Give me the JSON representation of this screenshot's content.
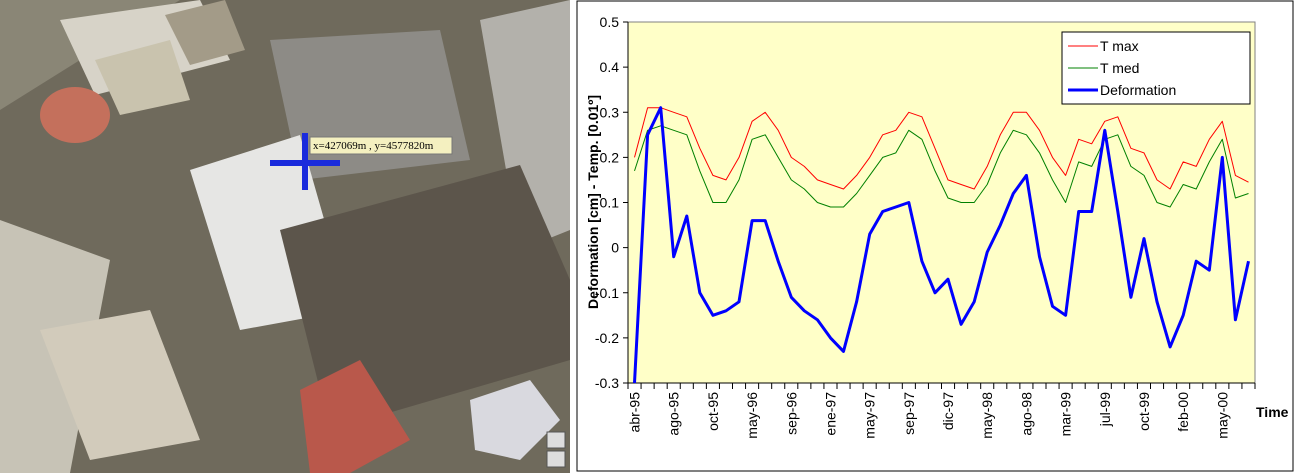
{
  "map": {
    "coordinate_label": "x=427069m , y=4577820m"
  },
  "chart_data": {
    "type": "line",
    "y_label": "Deformation [cm] - Temp. [0.01º]",
    "x_label": "Time",
    "categories": [
      "abr-95",
      null,
      null,
      "ago-95",
      null,
      null,
      "oct-95",
      null,
      null,
      "may-96",
      null,
      null,
      "sep-96",
      null,
      null,
      "ene-97",
      null,
      null,
      "may-97",
      null,
      null,
      "sep-97",
      null,
      null,
      "dic-97",
      null,
      null,
      "may-98",
      null,
      null,
      "ago-98",
      null,
      null,
      "mar-99",
      null,
      null,
      "jul-99",
      null,
      null,
      "oct-99",
      null,
      null,
      "feb-00",
      null,
      null,
      "may-00",
      null,
      null
    ],
    "series": [
      {
        "name": "T max",
        "color": "#ff0000",
        "width": 1,
        "values": [
          0.2,
          0.31,
          0.31,
          0.3,
          0.29,
          0.22,
          0.16,
          0.15,
          0.2,
          0.28,
          0.3,
          0.26,
          0.2,
          0.18,
          0.15,
          0.14,
          0.13,
          0.16,
          0.2,
          0.25,
          0.26,
          0.3,
          0.29,
          0.22,
          0.15,
          0.14,
          0.13,
          0.18,
          0.25,
          0.3,
          0.3,
          0.26,
          0.2,
          0.16,
          0.24,
          0.23,
          0.28,
          0.29,
          0.22,
          0.21,
          0.15,
          0.13,
          0.19,
          0.18,
          0.24,
          0.28,
          0.16,
          0.145
        ]
      },
      {
        "name": "T med",
        "color": "#008000",
        "width": 1,
        "values": [
          0.17,
          0.26,
          0.27,
          0.26,
          0.25,
          0.17,
          0.1,
          0.1,
          0.15,
          0.24,
          0.25,
          0.2,
          0.15,
          0.13,
          0.1,
          0.09,
          0.09,
          0.12,
          0.16,
          0.2,
          0.21,
          0.26,
          0.24,
          0.17,
          0.11,
          0.1,
          0.1,
          0.14,
          0.21,
          0.26,
          0.25,
          0.21,
          0.15,
          0.1,
          0.19,
          0.18,
          0.24,
          0.25,
          0.18,
          0.16,
          0.1,
          0.09,
          0.14,
          0.13,
          0.19,
          0.24,
          0.11,
          0.12
        ]
      },
      {
        "name": "Deformation",
        "color": "#0000ff",
        "width": 3,
        "values": [
          -0.3,
          0.25,
          0.31,
          -0.02,
          0.07,
          -0.1,
          -0.15,
          -0.14,
          -0.12,
          0.06,
          0.06,
          -0.03,
          -0.11,
          -0.14,
          -0.16,
          -0.2,
          -0.23,
          -0.12,
          0.03,
          0.08,
          0.09,
          0.1,
          -0.03,
          -0.1,
          -0.07,
          -0.17,
          -0.12,
          -0.01,
          0.05,
          0.12,
          0.16,
          -0.02,
          -0.13,
          -0.15,
          0.08,
          0.08,
          0.26,
          0.08,
          -0.11,
          0.02,
          -0.12,
          -0.22,
          -0.15,
          -0.03,
          -0.05,
          0.2,
          -0.16,
          -0.03
        ]
      }
    ],
    "ylim": [
      -0.3,
      0.5
    ],
    "yticks": [
      -0.3,
      -0.2,
      -0.1,
      0,
      0.1,
      0.2,
      0.3,
      0.4,
      0.5
    ],
    "background": "#ffffc8",
    "legend": "upper right"
  }
}
